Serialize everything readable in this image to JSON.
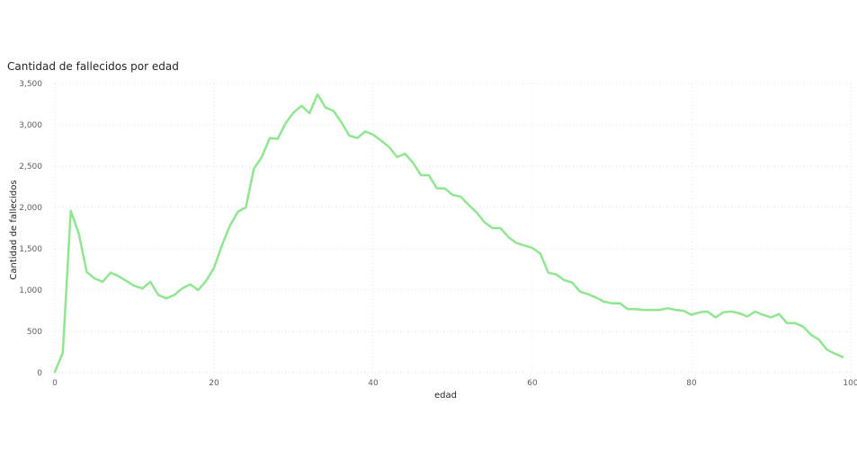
{
  "chart_data": {
    "type": "line",
    "title": "Cantidad de fallecidos por edad",
    "xlabel": "edad",
    "ylabel": "Cantidad de fallecidos",
    "xlim": [
      0,
      100
    ],
    "ylim": [
      0,
      3500
    ],
    "x_ticks": [
      0,
      20,
      40,
      60,
      80,
      100
    ],
    "y_ticks": [
      0,
      500,
      1000,
      1500,
      2000,
      2500,
      3000,
      3500
    ],
    "y_tick_labels": [
      "0",
      "500",
      "1,000",
      "1,500",
      "2,000",
      "2,500",
      "3,000",
      "3,500"
    ],
    "x_tick_labels": [
      "0",
      "20",
      "40",
      "60",
      "80",
      "100"
    ],
    "grid": true,
    "legend": "none",
    "color": "#90e590",
    "series": [
      {
        "x": [
          0,
          1,
          2,
          3,
          4,
          5,
          6,
          7,
          8,
          9,
          10,
          11,
          12,
          13,
          14,
          15,
          16,
          17,
          18,
          19,
          20,
          21,
          22,
          23,
          24,
          25,
          26,
          27,
          28,
          29,
          30,
          31,
          32,
          33,
          34,
          35,
          36,
          37,
          38,
          39,
          40,
          41,
          42,
          43,
          44,
          45,
          46,
          47,
          48,
          49,
          50,
          51,
          52,
          53,
          54,
          55,
          56,
          57,
          58,
          59,
          60,
          61,
          62,
          63,
          64,
          65,
          66,
          67,
          68,
          69,
          70,
          71,
          72,
          73,
          74,
          75,
          76,
          77,
          78,
          79,
          80,
          81,
          82,
          83,
          84,
          85,
          86,
          87,
          88,
          89,
          90,
          91,
          92,
          93,
          94,
          95,
          96,
          97,
          98,
          99
        ],
        "values": [
          10,
          240,
          1960,
          1690,
          1220,
          1140,
          1100,
          1210,
          1170,
          1110,
          1050,
          1020,
          1100,
          940,
          900,
          940,
          1020,
          1070,
          1000,
          1110,
          1270,
          1540,
          1780,
          1950,
          2000,
          2470,
          2610,
          2840,
          2830,
          3020,
          3150,
          3230,
          3140,
          3370,
          3210,
          3170,
          3030,
          2870,
          2840,
          2920,
          2880,
          2810,
          2730,
          2610,
          2650,
          2540,
          2390,
          2390,
          2230,
          2230,
          2150,
          2130,
          2030,
          1940,
          1820,
          1750,
          1750,
          1640,
          1570,
          1540,
          1510,
          1440,
          1210,
          1190,
          1120,
          1090,
          980,
          950,
          910,
          860,
          840,
          840,
          770,
          770,
          760,
          760,
          760,
          780,
          760,
          750,
          700,
          730,
          740,
          670,
          730,
          740,
          720,
          680,
          740,
          700,
          670,
          710,
          600,
          600,
          560,
          460,
          400,
          280,
          230,
          190
        ]
      }
    ]
  }
}
